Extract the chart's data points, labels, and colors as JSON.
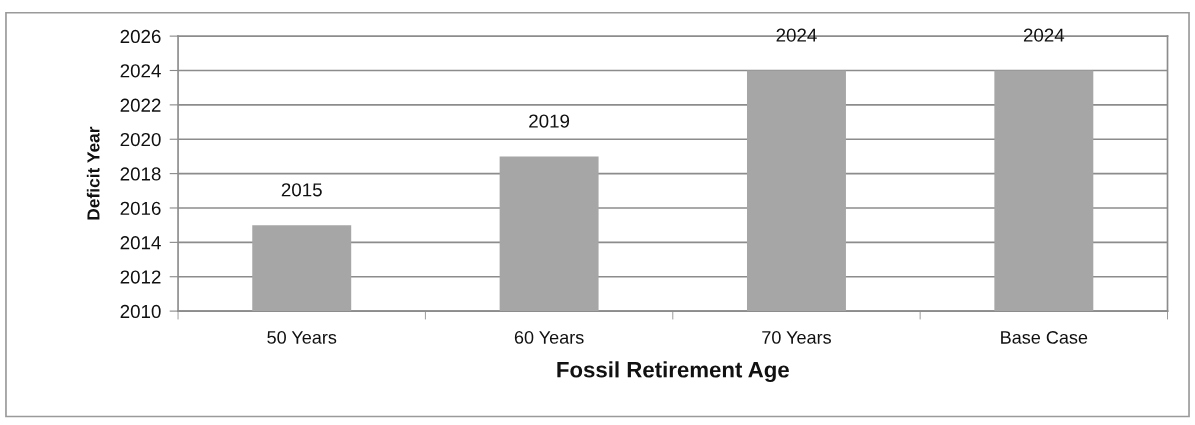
{
  "chart_data": {
    "type": "bar",
    "xlabel": "Fossil Retirement Age",
    "ylabel": "Deficit Year",
    "categories": [
      "50 Years",
      "60 Years",
      "70 Years",
      "Base Case"
    ],
    "values": [
      2015,
      2019,
      2024,
      2024
    ],
    "color": "#a6a6a6",
    "ylim": [
      2010,
      2026
    ],
    "yticks": [
      2010,
      2012,
      2014,
      2016,
      2018,
      2020,
      2022,
      2024,
      2026
    ],
    "grid": "y",
    "data_labels": true
  }
}
